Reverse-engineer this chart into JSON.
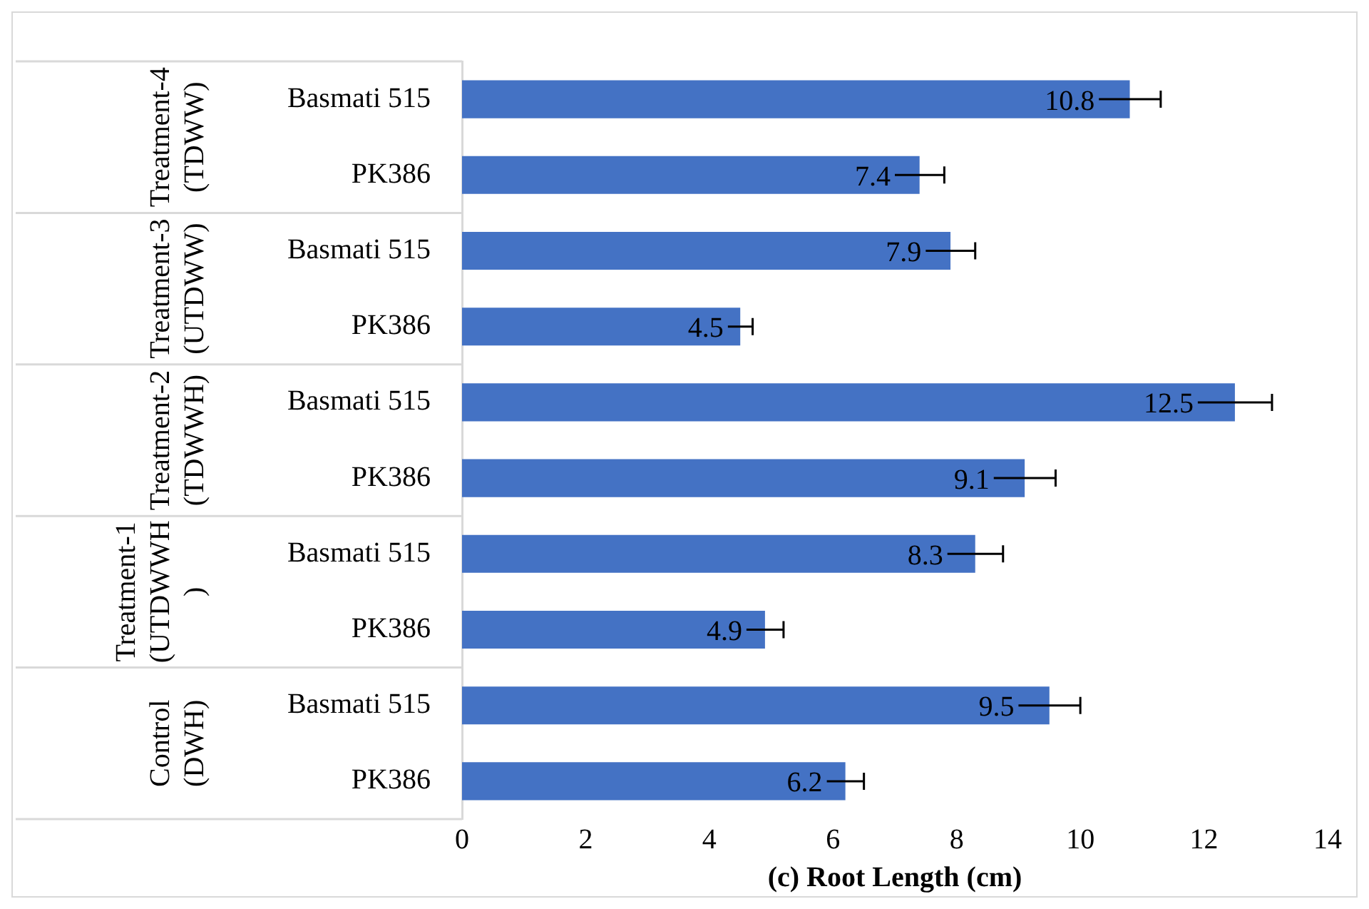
{
  "chart_data": {
    "type": "bar",
    "orientation": "horizontal",
    "xlabel": "(c) Root Length (cm)",
    "categories": [
      "Basmati 515",
      "PK386",
      "Basmati 515",
      "PK386",
      "Basmati 515",
      "PK386",
      "Basmati 515",
      "PK386",
      "Basmati 515",
      "PK386"
    ],
    "annotations": [
      "Treatment-4 (TDWW)",
      "Treatment-3 (UTDWW)",
      "Treatment-2 (TDWWH)",
      "Treatment-1 (UTDWWH)",
      "Control (DWH)"
    ],
    "values": [
      10.8,
      7.4,
      7.9,
      4.5,
      12.5,
      9.1,
      8.3,
      4.9,
      9.5,
      6.2
    ],
    "errors": [
      0.5,
      0.4,
      0.4,
      0.2,
      0.6,
      0.5,
      0.45,
      0.3,
      0.5,
      0.3
    ],
    "color": "#4472c4",
    "data_labels": true,
    "xlim": [
      0,
      14
    ],
    "xticks": [
      0,
      2,
      4,
      6,
      8,
      10,
      12,
      14
    ],
    "grid": false,
    "legend": false
  }
}
